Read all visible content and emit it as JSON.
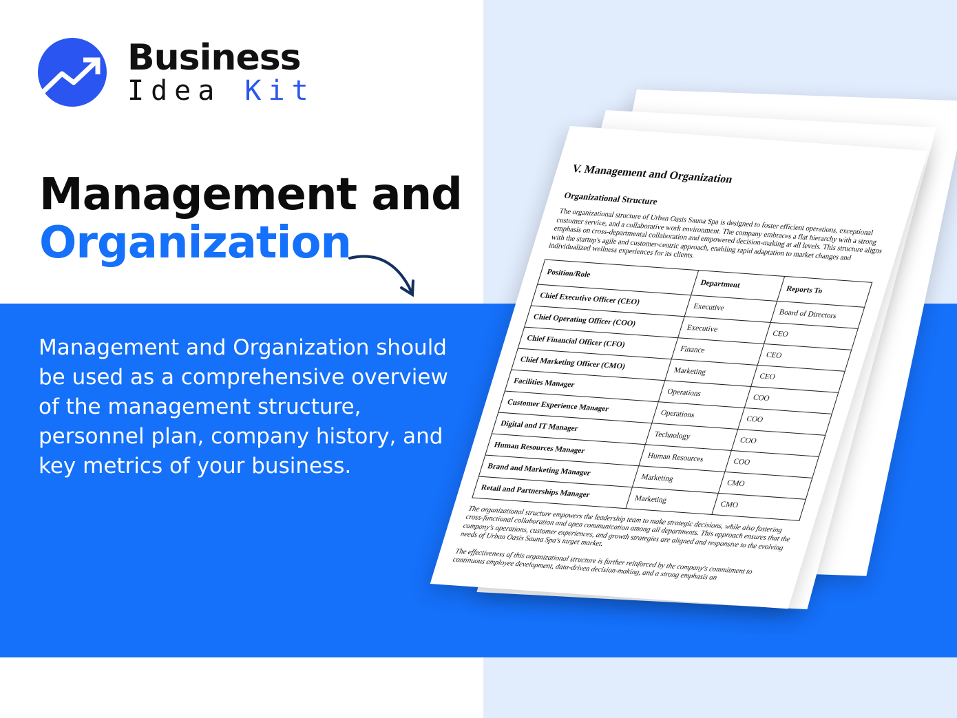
{
  "brand": {
    "line1": "Business",
    "line2a": "Idea",
    "line2b": "Kit",
    "accent": "#2a55f0"
  },
  "headline": {
    "line1": "Management and",
    "line2": "Organization"
  },
  "description": "Management and Organization should be used as a comprehensive overview of the management structure, personnel plan, company history, and key metrics of your business.",
  "colors": {
    "band": "#1570fa",
    "right_bg": "#e1ecfd"
  },
  "document": {
    "title": "V. Management and Organization",
    "subtitle": "Organizational Structure",
    "intro": "The organizational structure of Urban Oasis Sauna Spa is designed to foster efficient operations, exceptional customer service, and a collaborative work environment. The company embraces a flat hierarchy with a strong emphasis on cross-departmental collaboration and empowered decision-making at all levels. This structure aligns with the startup's agile and customer-centric approach, enabling rapid adaptation to market changes and individualized wellness experiences for its clients.",
    "columns": [
      "Position/Role",
      "Department",
      "Reports To"
    ],
    "rows": [
      [
        "Chief Executive Officer (CEO)",
        "Executive",
        "Board of Directors"
      ],
      [
        "Chief Operating Officer (COO)",
        "Executive",
        "CEO"
      ],
      [
        "Chief Financial Officer (CFO)",
        "Finance",
        "CEO"
      ],
      [
        "Chief Marketing Officer (CMO)",
        "Marketing",
        "CEO"
      ],
      [
        "Facilities Manager",
        "Operations",
        "COO"
      ],
      [
        "Customer Experience Manager",
        "Operations",
        "COO"
      ],
      [
        "Digital and IT Manager",
        "Technology",
        "COO"
      ],
      [
        "Human Resources Manager",
        "Human Resources",
        "COO"
      ],
      [
        "Brand and Marketing Manager",
        "Marketing",
        "CMO"
      ],
      [
        "Retail and Partnerships Manager",
        "Marketing",
        "CMO"
      ]
    ],
    "para2": "The organizational structure empowers the leadership team to make strategic decisions, while also fostering cross-functional collaboration and open communication among all departments. This approach ensures that the company's operations, customer experiences, and growth strategies are aligned and responsive to the evolving needs of Urban Oasis Sauna Spa's target market.",
    "para3": "The effectiveness of this organizational structure is further reinforced by the company's commitment to continuous employee development, data-driven decision-making, and a strong emphasis on"
  }
}
